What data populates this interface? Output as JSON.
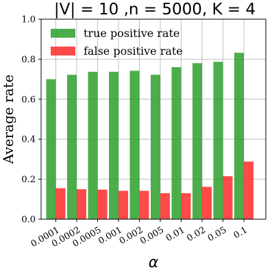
{
  "chart_data": {
    "type": "bar",
    "title": "|V| = 10 ,n = 5000, K = 4",
    "xlabel": "α",
    "ylabel": "Average rate",
    "categories": [
      "0.0001",
      "0.0002",
      "0.0005",
      "0.001",
      "0.002",
      "0.005",
      "0.01",
      "0.02",
      "0.05",
      "0.1"
    ],
    "ylim": [
      0,
      1.0
    ],
    "yticks": [
      "0.0",
      "0.2",
      "0.4",
      "0.6",
      "0.8",
      "1.0"
    ],
    "grid": true,
    "legend_position": "top-left",
    "series": [
      {
        "name": "true positive rate",
        "color": "#2ca02c",
        "values": [
          0.7,
          0.722,
          0.737,
          0.737,
          0.742,
          0.722,
          0.76,
          0.78,
          0.787,
          0.832
        ]
      },
      {
        "name": "false positive rate",
        "color": "#ff2a2a",
        "values": [
          0.155,
          0.15,
          0.148,
          0.142,
          0.142,
          0.13,
          0.13,
          0.162,
          0.215,
          0.288
        ]
      }
    ]
  }
}
